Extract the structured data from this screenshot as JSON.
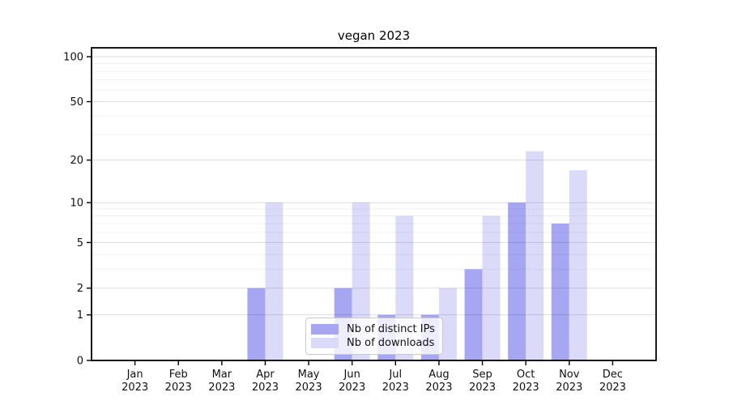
{
  "chart_data": {
    "type": "bar",
    "title": "vegan 2023",
    "categories": [
      "Jan",
      "Feb",
      "Mar",
      "Apr",
      "May",
      "Jun",
      "Jul",
      "Aug",
      "Sep",
      "Oct",
      "Nov",
      "Dec"
    ],
    "category_year": "2023",
    "series": [
      {
        "name": "Nb of distinct IPs",
        "color": "#a6a6f3",
        "values": [
          0,
          0,
          0,
          2,
          0,
          2,
          1,
          1,
          3,
          10,
          7,
          0
        ]
      },
      {
        "name": "Nb of downloads",
        "color": "#dbdbf9",
        "values": [
          0,
          0,
          0,
          10,
          0,
          10,
          8,
          2,
          8,
          23,
          17,
          0
        ]
      }
    ],
    "yscale": "log1p",
    "ylim": [
      0,
      115
    ],
    "y_ticks": [
      0,
      1,
      2,
      5,
      10,
      20,
      50,
      100
    ],
    "y_minor_ticks": [
      3,
      4,
      6,
      7,
      8,
      9,
      30,
      40,
      60,
      70,
      80,
      90
    ],
    "grid": true,
    "legend_position": "lower center"
  },
  "colors": {
    "grid_major": "rgba(0,0,0,0.13)",
    "grid_minor": "rgba(0,0,0,0.05)",
    "spine": "#000000",
    "tick_label": "#111111",
    "background": "#ffffff"
  }
}
